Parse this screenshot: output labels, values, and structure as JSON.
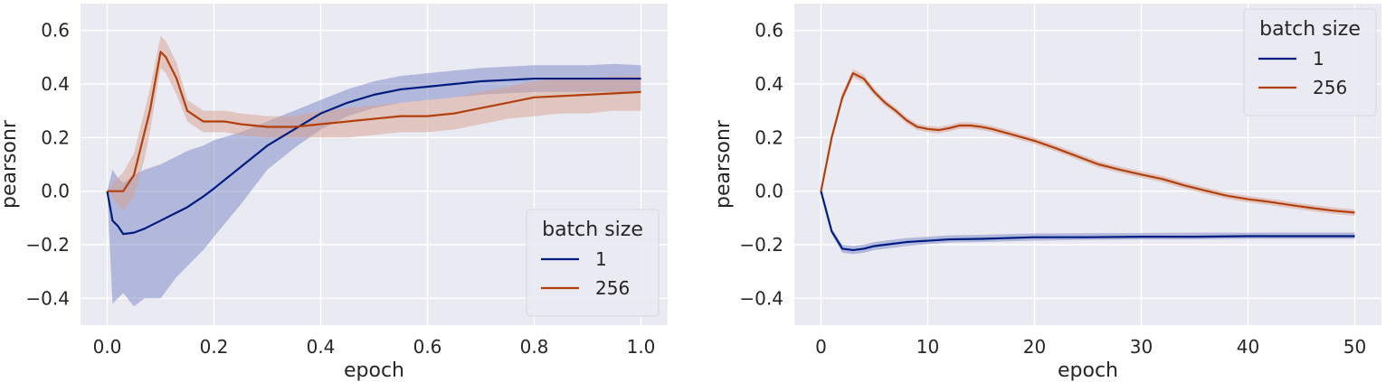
{
  "chart_data": [
    {
      "type": "line",
      "xlabel": "epoch",
      "ylabel": "pearsonr",
      "xlim": [
        -0.05,
        1.05
      ],
      "ylim": [
        -0.5,
        0.7
      ],
      "xticks": [
        0.0,
        0.2,
        0.4,
        0.6,
        0.8,
        1.0
      ],
      "xtick_labels": [
        "0.0",
        "0.2",
        "0.4",
        "0.6",
        "0.8",
        "1.0"
      ],
      "yticks": [
        -0.4,
        -0.2,
        0.0,
        0.2,
        0.4,
        0.6
      ],
      "ytick_labels": [
        "−0.4",
        "−0.2",
        "0.0",
        "0.2",
        "0.4",
        "0.6"
      ],
      "grid": true,
      "legend": {
        "title": "batch size",
        "placement": "bottom-right",
        "entries": [
          "1",
          "256"
        ]
      },
      "series": [
        {
          "name": "1",
          "color": "#001c7f",
          "band_color": "#7985c4",
          "x": [
            0,
            0.01,
            0.02,
            0.03,
            0.05,
            0.07,
            0.1,
            0.13,
            0.15,
            0.18,
            0.2,
            0.25,
            0.3,
            0.35,
            0.4,
            0.45,
            0.5,
            0.55,
            0.6,
            0.65,
            0.7,
            0.75,
            0.8,
            0.85,
            0.9,
            0.95,
            1.0
          ],
          "y": [
            0,
            -0.11,
            -0.13,
            -0.16,
            -0.155,
            -0.14,
            -0.11,
            -0.08,
            -0.06,
            -0.02,
            0.01,
            0.09,
            0.17,
            0.23,
            0.29,
            0.33,
            0.36,
            0.38,
            0.39,
            0.4,
            0.41,
            0.415,
            0.42,
            0.42,
            0.42,
            0.42,
            0.42
          ],
          "lower": [
            0,
            -0.42,
            -0.4,
            -0.38,
            -0.43,
            -0.4,
            -0.4,
            -0.32,
            -0.28,
            -0.22,
            -0.17,
            -0.05,
            0.08,
            0.16,
            0.23,
            0.28,
            0.31,
            0.33,
            0.34,
            0.35,
            0.36,
            0.365,
            0.37,
            0.37,
            0.37,
            0.37,
            0.37
          ],
          "upper": [
            0,
            0.08,
            0.05,
            0.03,
            0.06,
            0.08,
            0.1,
            0.13,
            0.15,
            0.17,
            0.19,
            0.22,
            0.26,
            0.3,
            0.34,
            0.38,
            0.41,
            0.43,
            0.44,
            0.45,
            0.46,
            0.465,
            0.47,
            0.47,
            0.47,
            0.475,
            0.47
          ]
        },
        {
          "name": "256",
          "color": "#b1400d",
          "band_color": "#d8a08e",
          "x": [
            0,
            0.02,
            0.03,
            0.05,
            0.07,
            0.08,
            0.1,
            0.11,
            0.13,
            0.15,
            0.18,
            0.22,
            0.25,
            0.3,
            0.35,
            0.4,
            0.45,
            0.5,
            0.55,
            0.6,
            0.65,
            0.7,
            0.75,
            0.8,
            0.85,
            0.9,
            0.95,
            1.0
          ],
          "y": [
            0,
            0.0,
            0.0,
            0.06,
            0.22,
            0.3,
            0.52,
            0.5,
            0.42,
            0.3,
            0.26,
            0.26,
            0.25,
            0.24,
            0.24,
            0.25,
            0.26,
            0.27,
            0.28,
            0.28,
            0.29,
            0.31,
            0.33,
            0.35,
            0.355,
            0.36,
            0.365,
            0.37
          ],
          "lower": [
            0,
            -0.05,
            -0.07,
            -0.02,
            0.12,
            0.22,
            0.46,
            0.44,
            0.36,
            0.26,
            0.22,
            0.22,
            0.21,
            0.2,
            0.2,
            0.2,
            0.2,
            0.21,
            0.22,
            0.22,
            0.23,
            0.25,
            0.27,
            0.28,
            0.29,
            0.29,
            0.3,
            0.3
          ],
          "upper": [
            0,
            0.05,
            0.07,
            0.14,
            0.3,
            0.38,
            0.58,
            0.56,
            0.48,
            0.34,
            0.3,
            0.3,
            0.29,
            0.28,
            0.28,
            0.3,
            0.31,
            0.32,
            0.33,
            0.34,
            0.35,
            0.37,
            0.39,
            0.41,
            0.42,
            0.42,
            0.43,
            0.43
          ]
        }
      ]
    },
    {
      "type": "line",
      "xlabel": "epoch",
      "ylabel": "pearsonr",
      "xlim": [
        -2.5,
        52.5
      ],
      "ylim": [
        -0.5,
        0.7
      ],
      "xticks": [
        0,
        10,
        20,
        30,
        40,
        50
      ],
      "xtick_labels": [
        "0",
        "10",
        "20",
        "30",
        "40",
        "50"
      ],
      "yticks": [
        -0.4,
        -0.2,
        0.0,
        0.2,
        0.4,
        0.6
      ],
      "ytick_labels": [
        "−0.4",
        "−0.2",
        "0.0",
        "0.2",
        "0.4",
        "0.6"
      ],
      "grid": true,
      "legend": {
        "title": "batch size",
        "placement": "top-right",
        "entries": [
          "1",
          "256"
        ]
      },
      "series": [
        {
          "name": "1",
          "color": "#001c7f",
          "band_color": "#7985c4",
          "x": [
            0,
            1,
            2,
            3,
            4,
            5,
            6,
            8,
            10,
            12,
            15,
            20,
            25,
            30,
            35,
            40,
            45,
            50
          ],
          "y": [
            0,
            -0.15,
            -0.215,
            -0.22,
            -0.215,
            -0.205,
            -0.2,
            -0.19,
            -0.185,
            -0.18,
            -0.178,
            -0.172,
            -0.172,
            -0.17,
            -0.17,
            -0.168,
            -0.168,
            -0.168
          ],
          "lower": [
            0,
            -0.16,
            -0.23,
            -0.235,
            -0.23,
            -0.22,
            -0.215,
            -0.205,
            -0.198,
            -0.192,
            -0.19,
            -0.185,
            -0.182,
            -0.18,
            -0.18,
            -0.178,
            -0.178,
            -0.178
          ],
          "upper": [
            0,
            -0.14,
            -0.2,
            -0.205,
            -0.2,
            -0.19,
            -0.185,
            -0.175,
            -0.17,
            -0.165,
            -0.163,
            -0.158,
            -0.157,
            -0.156,
            -0.155,
            -0.155,
            -0.154,
            -0.154
          ]
        },
        {
          "name": "256",
          "color": "#b1400d",
          "band_color": "#d8a08e",
          "x": [
            0,
            1,
            2,
            3,
            4,
            5,
            6,
            7,
            8,
            9,
            10,
            11,
            12,
            13,
            14,
            15,
            16,
            18,
            20,
            22,
            24,
            26,
            28,
            30,
            32,
            34,
            36,
            38,
            40,
            42,
            44,
            46,
            48,
            50
          ],
          "y": [
            0,
            0.2,
            0.35,
            0.44,
            0.42,
            0.37,
            0.33,
            0.3,
            0.265,
            0.24,
            0.232,
            0.228,
            0.235,
            0.245,
            0.245,
            0.24,
            0.232,
            0.21,
            0.188,
            0.16,
            0.13,
            0.1,
            0.08,
            0.062,
            0.045,
            0.022,
            0.002,
            -0.017,
            -0.03,
            -0.04,
            -0.052,
            -0.063,
            -0.073,
            -0.08
          ],
          "lower": [
            0,
            0.19,
            0.335,
            0.425,
            0.405,
            0.357,
            0.318,
            0.288,
            0.253,
            0.228,
            0.22,
            0.216,
            0.223,
            0.233,
            0.233,
            0.228,
            0.22,
            0.198,
            0.176,
            0.148,
            0.118,
            0.088,
            0.068,
            0.05,
            0.033,
            0.01,
            -0.01,
            -0.029,
            -0.042,
            -0.052,
            -0.064,
            -0.075,
            -0.085,
            -0.092
          ],
          "upper": [
            0,
            0.21,
            0.365,
            0.455,
            0.435,
            0.383,
            0.342,
            0.312,
            0.277,
            0.252,
            0.244,
            0.24,
            0.247,
            0.257,
            0.257,
            0.252,
            0.244,
            0.222,
            0.2,
            0.172,
            0.142,
            0.112,
            0.092,
            0.074,
            0.057,
            0.034,
            0.014,
            -0.005,
            -0.018,
            -0.028,
            -0.04,
            -0.051,
            -0.061,
            -0.068
          ]
        }
      ]
    }
  ]
}
